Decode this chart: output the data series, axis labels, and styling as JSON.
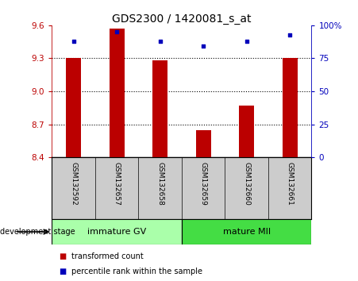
{
  "title": "GDS2300 / 1420081_s_at",
  "samples": [
    "GSM132592",
    "GSM132657",
    "GSM132658",
    "GSM132659",
    "GSM132660",
    "GSM132661"
  ],
  "bar_values": [
    9.3,
    9.57,
    9.28,
    8.65,
    8.87,
    9.3
  ],
  "bar_base": 8.4,
  "percentile_values": [
    88,
    95,
    88,
    84,
    88,
    93
  ],
  "ylim": [
    8.4,
    9.6
  ],
  "yticks": [
    8.4,
    8.7,
    9.0,
    9.3,
    9.6
  ],
  "right_yticks": [
    0,
    25,
    50,
    75,
    100
  ],
  "right_ytick_labels": [
    "0",
    "25",
    "50",
    "75",
    "100%"
  ],
  "bar_color": "#bb0000",
  "dot_color": "#0000bb",
  "group1_label": "immature GV",
  "group2_label": "mature MII",
  "group1_count": 3,
  "group2_count": 3,
  "group1_bg": "#aaffaa",
  "group2_bg": "#44dd44",
  "sample_bg": "#cccccc",
  "xlabel_text": "development stage",
  "legend_bar_label": "transformed count",
  "legend_dot_label": "percentile rank within the sample",
  "bar_width": 0.35,
  "title_fontsize": 10,
  "tick_fontsize": 7.5,
  "sample_fontsize": 6.5,
  "group_fontsize": 8
}
